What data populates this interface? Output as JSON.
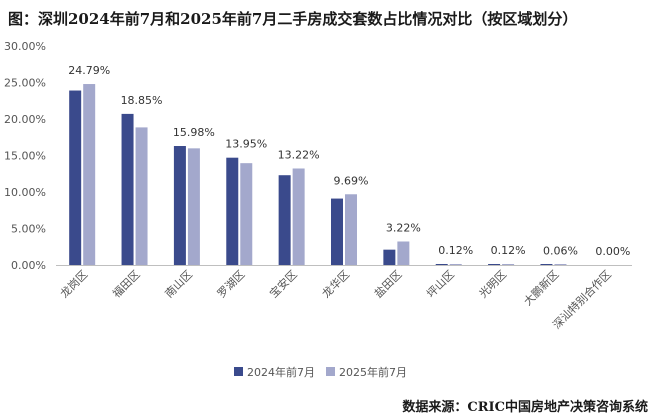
{
  "title": "图：深圳2024年前7月和2025年前7月二手房成交套数占比情况对比（按区域划分）",
  "source": "数据来源：CRIC中国房地产决策咨询系统",
  "chart_data": {
    "type": "bar",
    "categories": [
      "龙岗区",
      "福田区",
      "南山区",
      "罗湖区",
      "宝安区",
      "龙华区",
      "盐田区",
      "坪山区",
      "光明区",
      "大鹏新区",
      "深汕特别合作区"
    ],
    "series": [
      {
        "name": "2024年前7月",
        "color": "#3a4a8c",
        "values": [
          23.9,
          20.7,
          16.3,
          14.7,
          12.3,
          9.1,
          2.1,
          0.12,
          0.12,
          0.1,
          0.0
        ]
      },
      {
        "name": "2025年前7月",
        "color": "#a3a8cc",
        "values": [
          24.79,
          18.85,
          15.98,
          13.95,
          13.22,
          9.69,
          3.22,
          0.12,
          0.12,
          0.06,
          0.0
        ]
      }
    ],
    "data_labels": [
      "24.79%",
      "18.85%",
      "15.98%",
      "13.95%",
      "13.22%",
      "9.69%",
      "3.22%",
      "0.12%",
      "0.12%",
      "0.06%",
      "0.00%"
    ],
    "y_ticks": [
      "0.00%",
      "5.00%",
      "10.00%",
      "15.00%",
      "20.00%",
      "25.00%",
      "30.00%"
    ],
    "ylim": [
      0,
      30
    ],
    "grid": false,
    "legend_position": "bottom",
    "xlabel": "",
    "ylabel": ""
  }
}
